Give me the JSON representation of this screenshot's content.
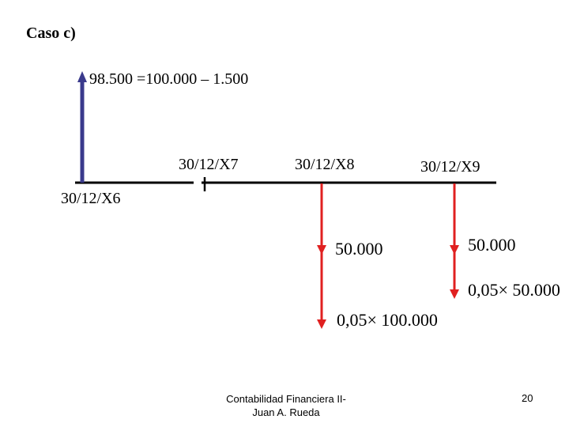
{
  "slide": {
    "title": "Caso c)",
    "equation": "98.500 =100.000 – 1.500",
    "dates": {
      "x6": "30/12/X6",
      "x7": "30/12/X7",
      "x8": "30/12/X8",
      "x9": "30/12/X9"
    },
    "flows": {
      "x8_principal": "50.000",
      "x8_interest": "0,05× 100.000",
      "x9_principal": "50.000",
      "x9_interest": "0,05× 50.000"
    },
    "footer": {
      "line1": "Contabilidad Financiera II-",
      "line2": "Juan A. Rueda"
    },
    "page_number": "20",
    "colors": {
      "inflow_arrow": "#3a3a8c",
      "outflow_arrow": "#e02020",
      "timeline": "#000000"
    }
  }
}
